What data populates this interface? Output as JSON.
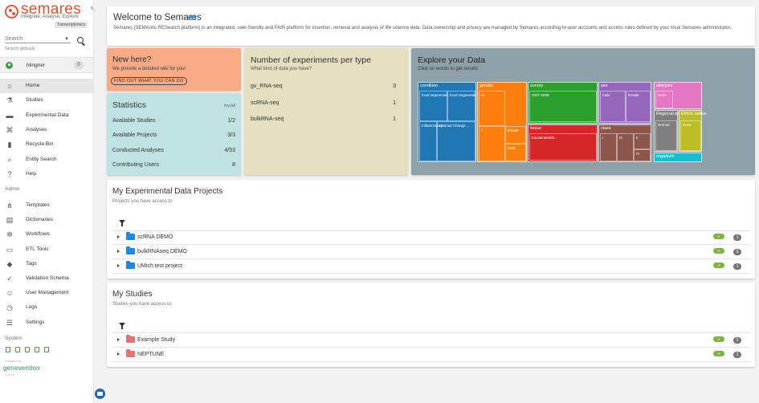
{
  "brand": {
    "name": "semares",
    "tagline": "Integrate, Analyse, Explore",
    "badge": "Transcriptomics",
    "collapse_glyph": "‹"
  },
  "search": {
    "placeholder": "Search",
    "caption": "Search globally"
  },
  "user": {
    "name": "hlingner",
    "count": "0"
  },
  "nav": {
    "items": [
      {
        "label": "Home",
        "icon": "home-icon",
        "glyph": "⌂"
      },
      {
        "label": "Studies",
        "icon": "flask-icon",
        "glyph": "⚗"
      },
      {
        "label": "Experimental Data",
        "icon": "folder-icon",
        "glyph": "▬"
      },
      {
        "label": "Analyses",
        "icon": "analyses-icon",
        "glyph": "⌘"
      },
      {
        "label": "Recycle Bin",
        "icon": "trash-icon",
        "glyph": "▮"
      },
      {
        "label": "Entity Search",
        "icon": "entity-search-icon",
        "glyph": "⌕"
      },
      {
        "label": "Help",
        "icon": "help-icon",
        "glyph": "?"
      }
    ],
    "admin_title": "Admin",
    "admin_items": [
      {
        "label": "Templates",
        "icon": "templates-icon",
        "glyph": "⋔"
      },
      {
        "label": "Dictionaries",
        "icon": "dictionary-icon",
        "glyph": "▤"
      },
      {
        "label": "Workflows",
        "icon": "workflow-icon",
        "glyph": "✲"
      },
      {
        "label": "ETL Tools",
        "icon": "etl-icon",
        "glyph": "▭"
      },
      {
        "label": "Tags",
        "icon": "tag-icon",
        "glyph": "◆"
      },
      {
        "label": "Validation Schema",
        "icon": "validation-icon",
        "glyph": "✓"
      },
      {
        "label": "User Management",
        "icon": "users-icon",
        "glyph": "☺"
      },
      {
        "label": "Logs",
        "icon": "history-icon",
        "glyph": "◷"
      },
      {
        "label": "Settings",
        "icon": "settings-icon",
        "glyph": "☰"
      }
    ],
    "system_title": "System"
  },
  "footer": {
    "powered": "Powered by",
    "company": "genevention",
    "version": "v 1.0.0"
  },
  "welcome": {
    "title": "Welcome to Semares",
    "description": "Semares (SEMAntic RESearch platform) is an integrated, user-friendly and FAIR platform for insertion, retrieval and analysis of life science data. Data ownership and privacy are managed by Semares according to user accounts and access rules defined by your local Semares administrator."
  },
  "new_here": {
    "title": "New here?",
    "subtitle": "We provide a detailed wiki for you!",
    "button": "FIND OUT WHAT YOU CAN DO"
  },
  "statistics": {
    "title": "Statistics",
    "scope": "my/all",
    "rows": [
      {
        "label": "Available Studies",
        "value": "1/2"
      },
      {
        "label": "Available Projects",
        "value": "3/3"
      },
      {
        "label": "Conducted Analyses",
        "value": "4/53"
      },
      {
        "label": "Contributing Users",
        "value": "8"
      }
    ]
  },
  "experiments": {
    "title": "Number of experiments per type",
    "subtitle": "What kind of data you have?",
    "rows": [
      {
        "label": "gv_RNA-seq",
        "value": "3"
      },
      {
        "label": "scRNA-seq",
        "value": "1"
      },
      {
        "label": "bulkRNA-seq",
        "value": "1"
      }
    ]
  },
  "explore": {
    "title": "Explore your Data",
    "subtitle": "Click on words to get results",
    "treemap": {
      "condition": {
        "label": "condition",
        "color": "#1f77b4",
        "subs": [
          "focal segmental...",
          "focal Segmental...",
          "Minimal Change ...",
          "Inflammatory..."
        ]
      },
      "gender": {
        "label": "gender",
        "color": "#ff7f0e",
        "subs": [
          "m",
          "f",
          "female",
          "male"
        ]
      },
      "survey": {
        "label": "survey",
        "color": "#2ca02c",
        "subs": [
          "2007-2008"
        ]
      },
      "tissue": {
        "label": "tissue",
        "color": "#d62728",
        "subs": [
          "tubulointerstiti..."
        ]
      },
      "sex": {
        "label": "sex",
        "color": "#9467bd",
        "subs": [
          "male",
          "female"
        ]
      },
      "class": {
        "label": "class",
        "color": "#8c564b",
        "subs": [
          "I",
          "III",
          "II",
          "IV"
        ]
      },
      "allergies": {
        "label": "allergies",
        "color": "#e377c2",
        "subs": [
          "None"
        ]
      },
      "regional": {
        "label": "Regional panel",
        "color": "#7f7f7f",
        "subs": [
          "Normal"
        ]
      },
      "yellow": {
        "label": "Ethnic status",
        "color": "#bcbd22",
        "subs": [
          "None"
        ]
      },
      "organism": {
        "label": "organism",
        "color": "#17becf",
        "subs": []
      }
    }
  },
  "projects": {
    "title": "My Experimental Data Projects",
    "subtitle": "Projects you have access to",
    "rows": [
      {
        "label": "scRNA DEMO",
        "tag": "A",
        "count": "1"
      },
      {
        "label": "bulkRNAseq DEMO",
        "tag": "A",
        "count": "3"
      },
      {
        "label": "UMich test project",
        "tag": "A",
        "count": "1"
      }
    ]
  },
  "studies": {
    "title": "My Studies",
    "subtitle": "Studies you have access to",
    "rows": [
      {
        "label": "Example Study",
        "tag": "A",
        "count": "2"
      },
      {
        "label": "NEPTUNE",
        "tag": "A",
        "count": "1"
      }
    ]
  }
}
